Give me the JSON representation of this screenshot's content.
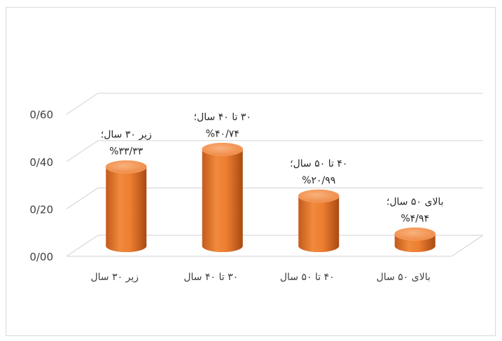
{
  "chart_data": {
    "type": "bar",
    "style": "3d-cylinder",
    "categories": [
      "زیر ۳۰ سال",
      "۳۰ تا ۴۰ سال",
      "۴۰ تا ۵۰ سال",
      "بالای ۵۰ سال"
    ],
    "values": [
      0.3333,
      0.4074,
      0.2099,
      0.0494
    ],
    "data_labels": [
      {
        "line1": "زیر ۳۰ سال؛",
        "line2": "%۳۳/۳۳"
      },
      {
        "line1": "۳۰ تا ۴۰ سال؛",
        "line2": "%۴۰/۷۴"
      },
      {
        "line1": "۴۰ تا ۵۰ سال؛",
        "line2": "%۲۰/۹۹"
      },
      {
        "line1": "بالای ۵۰ سال؛",
        "line2": "%۴/۹۴"
      }
    ],
    "yticks": [
      "0/00",
      "0/20",
      "0/40",
      "0/60"
    ],
    "ylim": [
      0,
      0.6
    ],
    "grid": true,
    "colors": {
      "bar": "#ed7d31",
      "bar_dark": "#b85418",
      "bar_light": "#f6a56a",
      "grid": "#d9d9d9"
    }
  }
}
